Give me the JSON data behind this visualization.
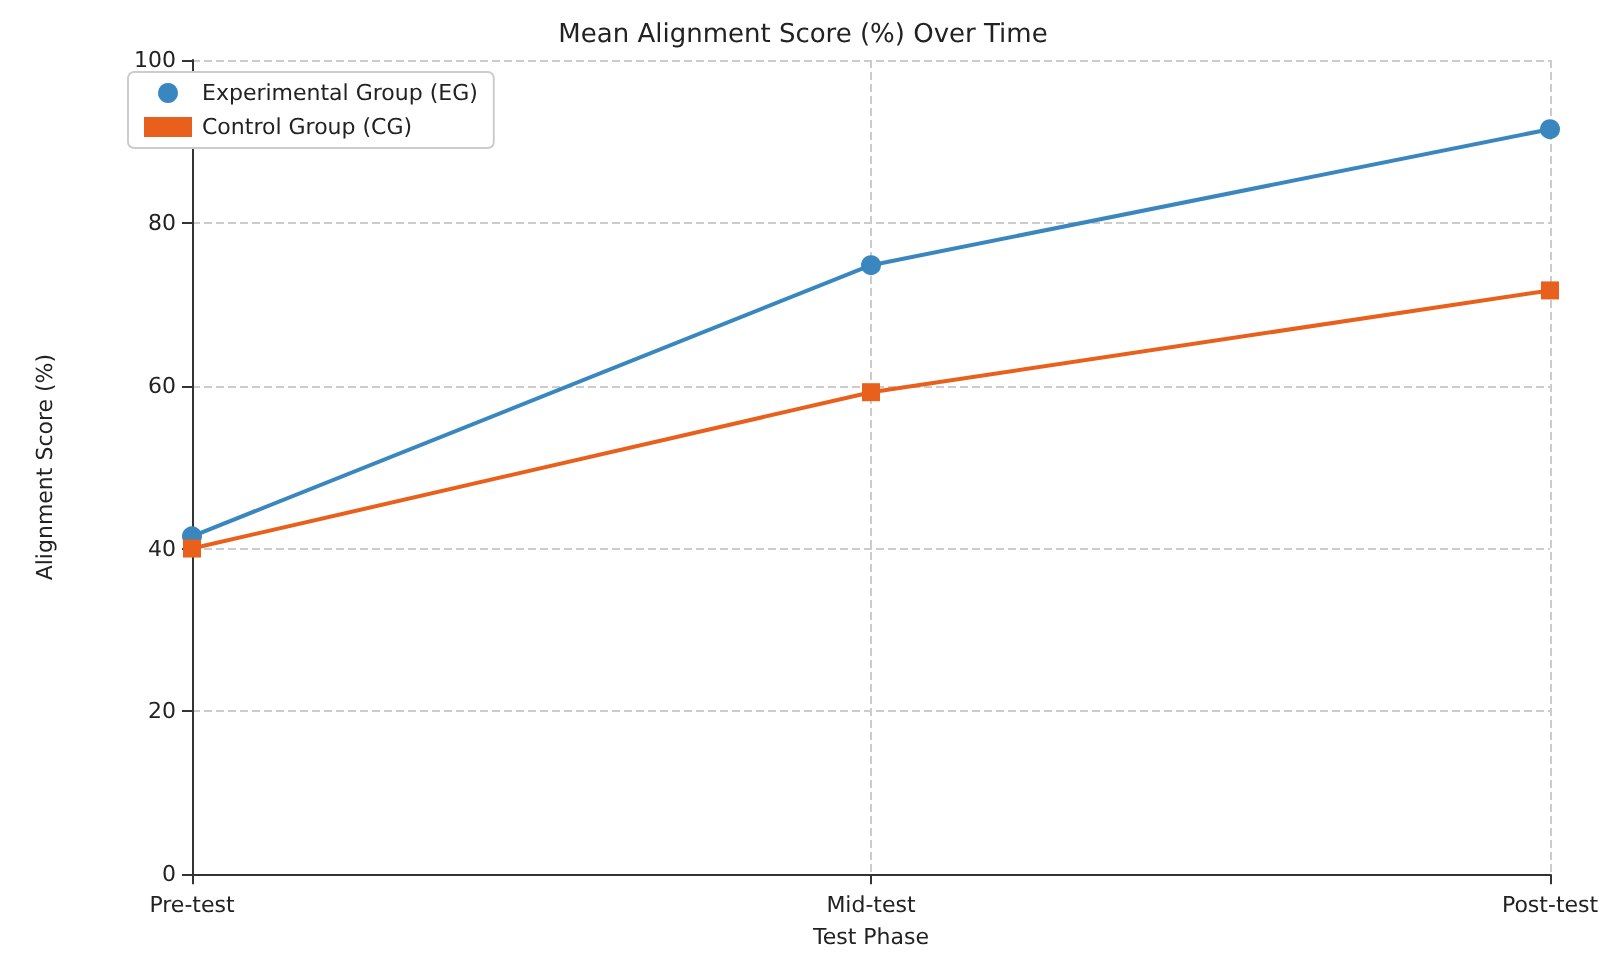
{
  "chart_data": {
    "type": "line",
    "title": "Mean Alignment Score (%) Over Time",
    "xlabel": "Test Phase",
    "ylabel": "Alignment Score (%)",
    "categories": [
      "Pre-test",
      "Mid-test",
      "Post-test"
    ],
    "series": [
      {
        "name": "Experimental Group (EG)",
        "color": "#3a87c0",
        "values": [
          41.5,
          74.8,
          91.5
        ],
        "marker": "circle"
      },
      {
        "name": "Control Group (CG)",
        "color": "#e8601c",
        "values": [
          40,
          59.2,
          71.7
        ],
        "marker": "square"
      }
    ],
    "ylim": [
      0,
      100
    ],
    "yticks": [
      0,
      20,
      40,
      60,
      80,
      100
    ],
    "grid": true,
    "legend": "top left",
    "line_style": "solid"
  }
}
